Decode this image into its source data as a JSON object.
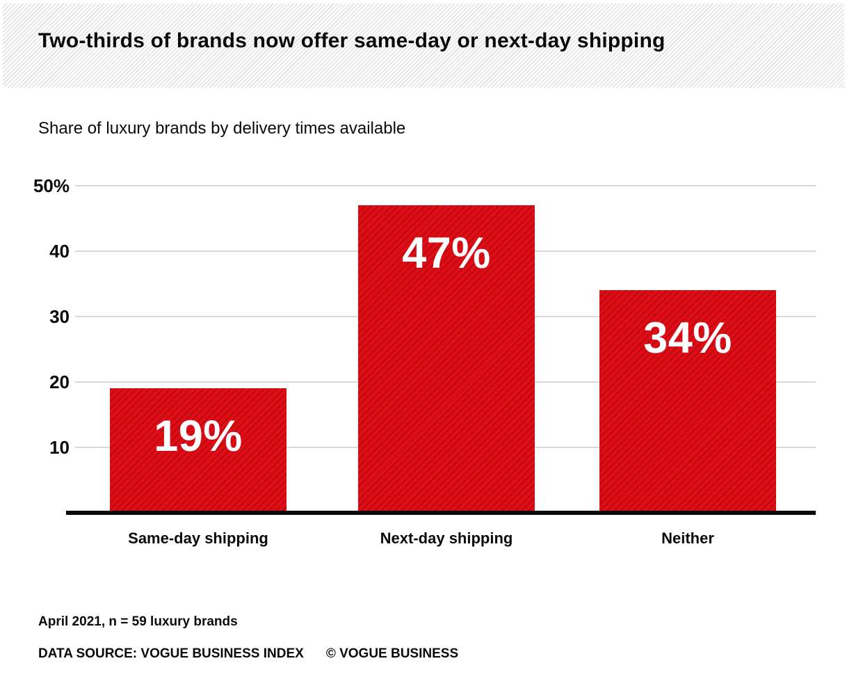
{
  "header": {
    "title": "Two-thirds of brands now offer same-day or next-day shipping"
  },
  "subtitle": "Share of luxury brands by delivery times available",
  "chart_data": {
    "type": "bar",
    "title": "Share of luxury brands by delivery times available",
    "categories": [
      "Same-day shipping",
      "Next-day shipping",
      "Neither"
    ],
    "values": [
      19,
      47,
      34
    ],
    "value_labels": [
      "19%",
      "47%",
      "34%"
    ],
    "xlabel": "",
    "ylabel": "",
    "ylim": [
      0,
      50
    ],
    "yticks": [
      10,
      20,
      30,
      40,
      50
    ],
    "ytick_labels": [
      "10",
      "20",
      "30",
      "40",
      "50%"
    ],
    "grid": true,
    "legend": "none",
    "bar_color": "#e00d16",
    "bar_hatch_color": "rgba(0,0,0,0.24)",
    "hatch_style": "diagonal-forward",
    "grid_color": "#d9d9d9",
    "axis_color": "#0b0b0b",
    "value_label_color": "#ffffff"
  },
  "footer": {
    "note": "April 2021, n = 59 luxury brands",
    "source": "DATA SOURCE: VOGUE BUSINESS INDEX",
    "copyright": "© VOGUE BUSINESS"
  },
  "colors": {
    "accent_red": "#e00d16",
    "stripe_gray": "#d8d8d8",
    "grid_gray": "#d9d9d9",
    "text_black": "#0a0a0a"
  }
}
